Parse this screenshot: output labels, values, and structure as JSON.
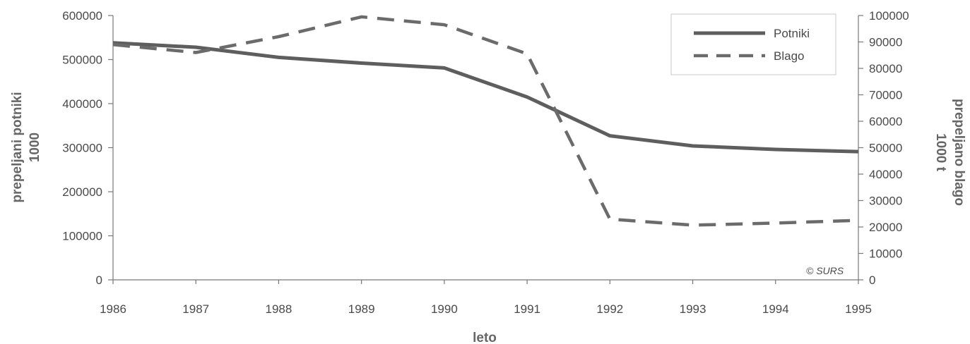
{
  "chart_data": {
    "type": "line",
    "x": [
      "1986",
      "1987",
      "1988",
      "1989",
      "1990",
      "1991",
      "1992",
      "1993",
      "1994",
      "1995"
    ],
    "xlabel": "leto",
    "ylabel_left": [
      "prepeljani potniki",
      "1000"
    ],
    "ylabel_right": [
      "prepeljano blago",
      "1000 t"
    ],
    "ylim_left": [
      0,
      600000
    ],
    "ylim_right": [
      0,
      100000
    ],
    "yticks_left": [
      "0",
      "100000",
      "200000",
      "300000",
      "400000",
      "500000",
      "600000"
    ],
    "yticks_right": [
      "0",
      "10000",
      "20000",
      "30000",
      "40000",
      "50000",
      "60000",
      "70000",
      "80000",
      "90000",
      "100000"
    ],
    "series": [
      {
        "name": "Potniki",
        "axis": "left",
        "style": "solid",
        "color": "#5e5e5e",
        "values": [
          538000,
          528000,
          505000,
          492000,
          481000,
          415000,
          327000,
          304000,
          296000,
          291000
        ]
      },
      {
        "name": "Blago",
        "axis": "right",
        "style": "dashed",
        "color": "#6b6b6b",
        "values": [
          89000,
          86000,
          92000,
          99500,
          96500,
          85500,
          23000,
          20700,
          21500,
          22500
        ]
      }
    ],
    "legend_position": "top-right",
    "credit": "© SURS",
    "grid": false
  }
}
